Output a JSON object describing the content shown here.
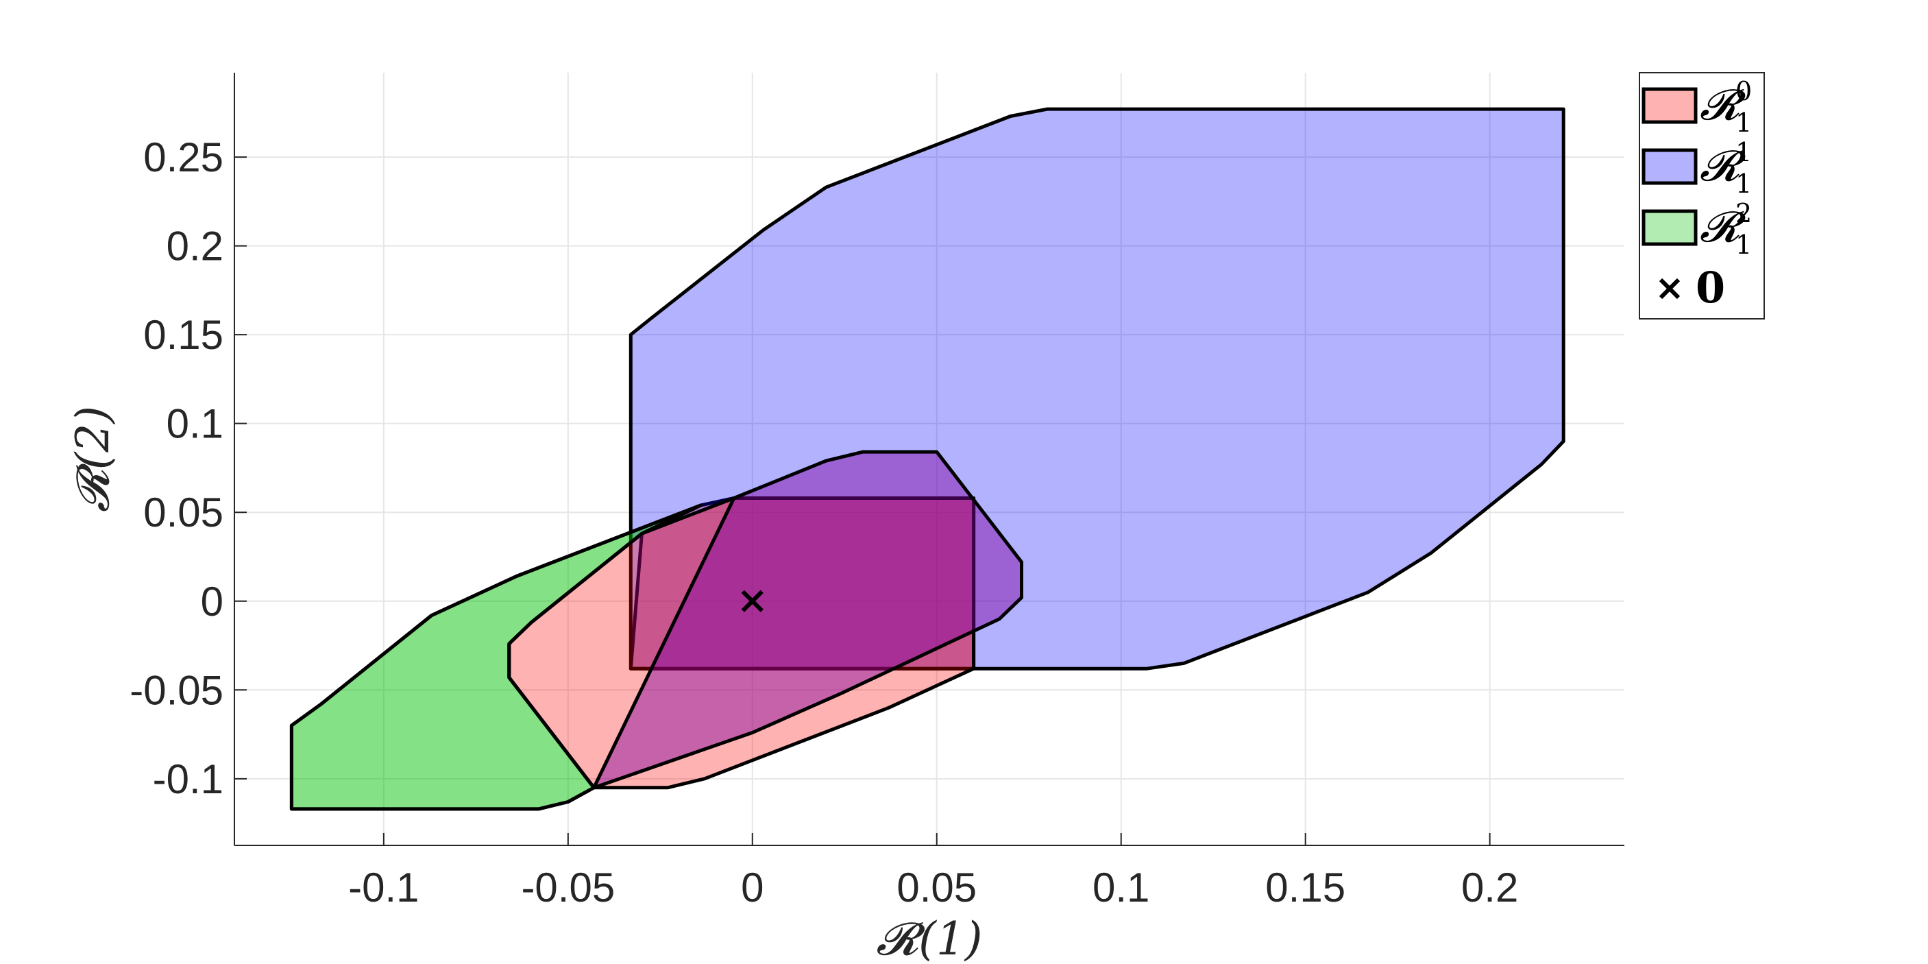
{
  "chart_data": {
    "type": "area",
    "xlabel": "𝓡(1)",
    "ylabel": "𝓡(2)",
    "xlim": [
      -0.1405,
      0.2365
    ],
    "ylim": [
      -0.1375,
      0.2975
    ],
    "xticks": [
      -0.1,
      -0.05,
      0,
      0.05,
      0.1,
      0.15,
      0.2
    ],
    "xtick_labels": [
      "-0.1",
      "-0.05",
      "0",
      "0.05",
      "0.1",
      "0.15",
      "0.2"
    ],
    "yticks": [
      -0.1,
      -0.05,
      0,
      0.05,
      0.1,
      0.15,
      0.2,
      0.25
    ],
    "ytick_labels": [
      "-0.1",
      "-0.05",
      "0",
      "0.05",
      "0.1",
      "0.15",
      "0.2",
      "0.25"
    ],
    "grid": true,
    "legend_position": "outside-top-right",
    "series": [
      {
        "name": "R1^0",
        "legend_main": "𝓡",
        "legend_sup": "0",
        "legend_sub": "1",
        "color": "#ff0000",
        "opacity": 0.3,
        "points": [
          [
            -0.033,
            -0.038
          ],
          [
            0.06,
            -0.038
          ],
          [
            0.06,
            0.058
          ],
          [
            -0.005,
            0.058
          ],
          [
            -0.014,
            0.054
          ],
          [
            -0.03,
            0.038
          ]
        ]
      },
      {
        "name": "R1^1",
        "legend_main": "𝓡",
        "legend_sup": "1",
        "legend_sub": "1",
        "color": "#0000ff",
        "opacity": 0.3,
        "points": [
          [
            -0.033,
            0.15
          ],
          [
            -0.027,
            0.16
          ],
          [
            0.003,
            0.209
          ],
          [
            0.02,
            0.233
          ],
          [
            0.07,
            0.273
          ],
          [
            0.08,
            0.277
          ],
          [
            0.22,
            0.277
          ],
          [
            0.22,
            0.09
          ],
          [
            0.214,
            0.077
          ],
          [
            0.184,
            0.027
          ],
          [
            0.167,
            0.005
          ],
          [
            0.117,
            -0.035
          ],
          [
            0.107,
            -0.038
          ],
          [
            -0.033,
            -0.038
          ]
        ]
      },
      {
        "name": "R1^2",
        "legend_main": "𝓡",
        "legend_sup": "2",
        "legend_sub": "1",
        "color": "#00c000",
        "opacity": 0.3,
        "points": [
          [
            -0.125,
            -0.117
          ],
          [
            -0.125,
            -0.07
          ],
          [
            -0.117,
            -0.058
          ],
          [
            -0.087,
            -0.008
          ],
          [
            -0.064,
            0.014
          ],
          [
            -0.014,
            0.054
          ],
          [
            -0.03,
            0.038
          ],
          [
            -0.06,
            -0.012
          ],
          [
            -0.066,
            -0.024
          ],
          [
            -0.066,
            -0.043
          ],
          [
            -0.043,
            -0.105
          ],
          [
            -0.05,
            -0.113
          ],
          [
            -0.058,
            -0.117
          ]
        ]
      }
    ],
    "overlays": [
      {
        "name": "R1^0 outline",
        "points": [
          [
            -0.043,
            -0.105
          ],
          [
            -0.023,
            -0.105
          ],
          [
            -0.013,
            -0.1
          ],
          [
            0.037,
            -0.06
          ],
          [
            0.06,
            -0.038
          ],
          [
            0.06,
            0.01
          ],
          [
            0.06,
            0.058
          ],
          [
            -0.005,
            0.058
          ],
          [
            -0.03,
            0.038
          ],
          [
            -0.06,
            -0.012
          ],
          [
            -0.066,
            -0.024
          ],
          [
            -0.066,
            -0.043
          ]
        ]
      },
      {
        "name": "R1^1 lower",
        "points": [
          [
            -0.005,
            0.058
          ],
          [
            0.02,
            0.079
          ],
          [
            0.03,
            0.084
          ],
          [
            0.05,
            0.084
          ],
          [
            0.073,
            0.022
          ],
          [
            0.073,
            0.002
          ],
          [
            0.067,
            -0.01
          ],
          [
            0.024,
            -0.052
          ],
          [
            0.0,
            -0.074
          ],
          [
            -0.043,
            -0.105
          ]
        ]
      }
    ],
    "marker": {
      "x": 0,
      "y": 0,
      "symbol": "×",
      "legend_label": "0"
    }
  }
}
